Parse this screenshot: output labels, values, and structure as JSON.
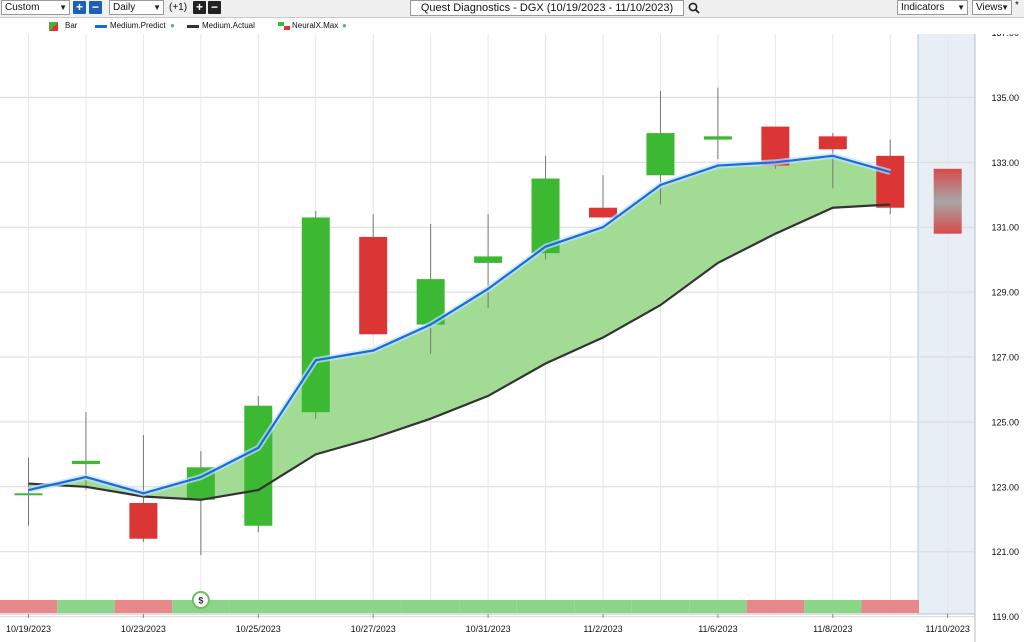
{
  "toolbar": {
    "preset": "Custom",
    "interval": "Daily",
    "offset": "(+1)",
    "chart_title": "Quest Diagnostics - DGX (10/19/2023 - 11/10/2023)",
    "indicators_label": "Indicators",
    "views_label": "Views"
  },
  "legend": {
    "bar": "Bar",
    "predict": "Medium.Predict",
    "actual": "Medium.Actual",
    "neural": "NeuralX.Max"
  },
  "colors": {
    "up": "#3cb832",
    "down": "#dc3535",
    "predict": "#1a6be0",
    "actual": "#333333",
    "fill": "#a2dc94",
    "band_up": "#8ad58a",
    "band_down": "#e98888",
    "forecast_bg": "#e7eef6"
  },
  "chart_data": {
    "type": "candlestick",
    "title": "Quest Diagnostics - DGX (10/19/2023 - 11/10/2023)",
    "ylim": [
      119,
      137
    ],
    "y_ticks": [
      "137.00",
      "135.00",
      "133.00",
      "131.00",
      "129.00",
      "127.00",
      "125.00",
      "123.00",
      "121.00",
      "119.00"
    ],
    "x_labels": [
      "10/19/2023",
      "10/23/2023",
      "10/25/2023",
      "10/27/2023",
      "10/31/2023",
      "11/2/2023",
      "11/6/2023",
      "11/8/2023",
      "11/10/2023"
    ],
    "candles": [
      {
        "o": 122.8,
        "h": 123.9,
        "l": 121.8,
        "c": 122.8
      },
      {
        "o": 123.7,
        "h": 125.3,
        "l": 122.9,
        "c": 123.8
      },
      {
        "o": 122.5,
        "h": 124.6,
        "l": 121.3,
        "c": 121.4
      },
      {
        "o": 122.6,
        "h": 124.1,
        "l": 120.9,
        "c": 123.6
      },
      {
        "o": 121.8,
        "h": 125.8,
        "l": 121.6,
        "c": 125.5
      },
      {
        "o": 125.3,
        "h": 131.5,
        "l": 125.1,
        "c": 131.3
      },
      {
        "o": 130.7,
        "h": 131.4,
        "l": 127.7,
        "c": 127.7
      },
      {
        "o": 128.0,
        "h": 131.1,
        "l": 127.1,
        "c": 129.4
      },
      {
        "o": 129.9,
        "h": 131.4,
        "l": 128.5,
        "c": 130.1
      },
      {
        "o": 130.2,
        "h": 133.2,
        "l": 130.0,
        "c": 132.5
      },
      {
        "o": 131.6,
        "h": 132.6,
        "l": 131.3,
        "c": 131.3
      },
      {
        "o": 132.6,
        "h": 135.2,
        "l": 131.7,
        "c": 133.9
      },
      {
        "o": 133.7,
        "h": 135.3,
        "l": 133.1,
        "c": 133.8
      },
      {
        "o": 134.1,
        "h": 134.1,
        "l": 132.8,
        "c": 132.9
      },
      {
        "o": 133.8,
        "h": 133.9,
        "l": 132.2,
        "c": 133.4
      },
      {
        "o": 133.2,
        "h": 133.7,
        "l": 131.4,
        "c": 131.6
      }
    ],
    "medium_predict": [
      122.9,
      123.3,
      122.8,
      123.3,
      124.2,
      126.9,
      127.2,
      128.0,
      129.1,
      130.4,
      131.0,
      132.3,
      132.9,
      133.0,
      133.2,
      132.7
    ],
    "medium_actual": [
      123.1,
      123.0,
      122.7,
      122.6,
      122.9,
      124.0,
      124.5,
      125.1,
      125.8,
      126.8,
      127.6,
      128.6,
      129.9,
      130.8,
      131.6,
      131.7
    ],
    "forecast": {
      "high": 132.8,
      "low": 130.8
    },
    "signals": [
      "down",
      "up",
      "down",
      "up",
      "up",
      "up",
      "up",
      "up",
      "up",
      "up",
      "up",
      "up",
      "up",
      "down",
      "up",
      "down"
    ],
    "signal_marker": "$"
  }
}
